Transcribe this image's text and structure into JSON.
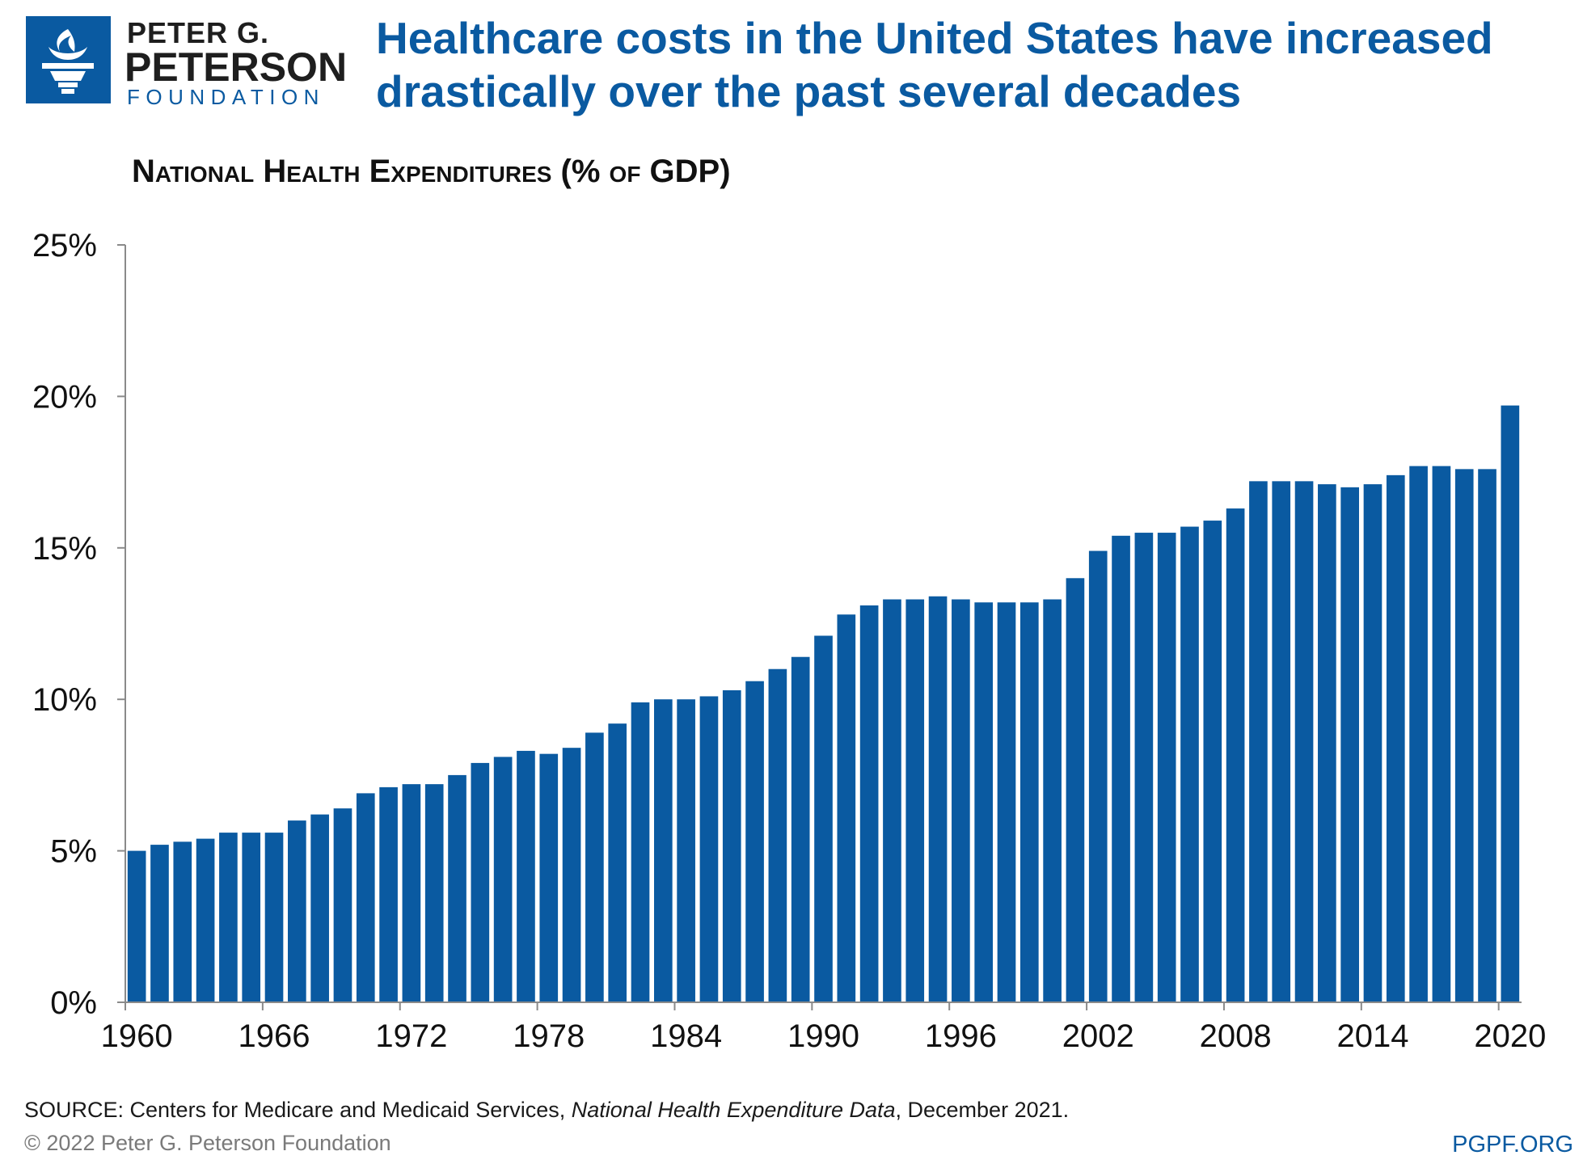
{
  "logo": {
    "line1": "PETER G.",
    "line2": "PETERSON",
    "line3": "FOUNDATION",
    "icon": "torch-icon"
  },
  "headline": "Healthcare costs in the United States have increased drastically over the past several decades",
  "footer": {
    "source_prefix": "SOURCE: Centers for Medicare and Medicaid Services, ",
    "source_italic": "National Health Expenditure Data",
    "source_suffix": ", December 2021.",
    "copyright": "© 2022 Peter G. Peterson Foundation",
    "site": "PGPF.ORG"
  },
  "colors": {
    "brand": "#0a5aa1",
    "bar": "#0a5aa1"
  },
  "chart_data": {
    "type": "bar",
    "title": "National Health Expenditures (% of GDP)",
    "xlabel": "",
    "ylabel": "",
    "ylim": [
      0,
      25
    ],
    "yticks": [
      0,
      5,
      10,
      15,
      20,
      25
    ],
    "ytick_labels": [
      "0%",
      "5%",
      "10%",
      "15%",
      "20%",
      "25%"
    ],
    "xtick_labels": [
      "1960",
      "1966",
      "1972",
      "1978",
      "1984",
      "1990",
      "1996",
      "2002",
      "2008",
      "2014",
      "2020"
    ],
    "grid": false,
    "categories": [
      "1960",
      "1961",
      "1962",
      "1963",
      "1964",
      "1965",
      "1966",
      "1967",
      "1968",
      "1969",
      "1970",
      "1971",
      "1972",
      "1973",
      "1974",
      "1975",
      "1976",
      "1977",
      "1978",
      "1979",
      "1980",
      "1981",
      "1982",
      "1983",
      "1984",
      "1985",
      "1986",
      "1987",
      "1988",
      "1989",
      "1990",
      "1991",
      "1992",
      "1993",
      "1994",
      "1995",
      "1996",
      "1997",
      "1998",
      "1999",
      "2000",
      "2001",
      "2002",
      "2003",
      "2004",
      "2005",
      "2006",
      "2007",
      "2008",
      "2009",
      "2010",
      "2011",
      "2012",
      "2013",
      "2014",
      "2015",
      "2016",
      "2017",
      "2018",
      "2019",
      "2020"
    ],
    "values": [
      5.0,
      5.2,
      5.3,
      5.4,
      5.6,
      5.6,
      5.6,
      6.0,
      6.2,
      6.4,
      6.9,
      7.1,
      7.2,
      7.2,
      7.5,
      7.9,
      8.1,
      8.3,
      8.2,
      8.4,
      8.9,
      9.2,
      9.9,
      10.0,
      10.0,
      10.1,
      10.3,
      10.6,
      11.0,
      11.4,
      12.1,
      12.8,
      13.1,
      13.3,
      13.3,
      13.4,
      13.3,
      13.2,
      13.2,
      13.2,
      13.3,
      14.0,
      14.9,
      15.4,
      15.5,
      15.5,
      15.7,
      15.9,
      16.3,
      17.2,
      17.2,
      17.2,
      17.1,
      17.0,
      17.1,
      17.4,
      17.7,
      17.7,
      17.6,
      17.6,
      19.7
    ]
  }
}
